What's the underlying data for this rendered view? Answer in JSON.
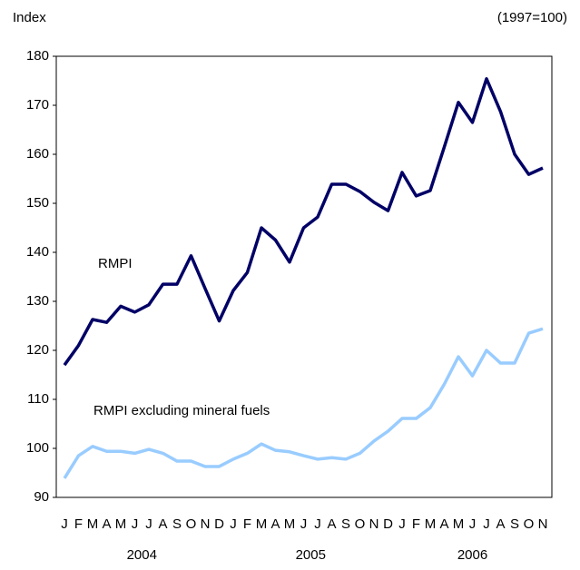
{
  "chart_data": {
    "type": "line",
    "y_axis_label": "Index",
    "y_axis_note": "(1997=100)",
    "categories": [
      "J",
      "F",
      "M",
      "A",
      "M",
      "J",
      "J",
      "A",
      "S",
      "O",
      "N",
      "D",
      "J",
      "F",
      "M",
      "A",
      "M",
      "J",
      "J",
      "A",
      "S",
      "O",
      "N",
      "D",
      "J",
      "F",
      "M",
      "A",
      "M",
      "J",
      "J",
      "A",
      "S",
      "O",
      "N"
    ],
    "years": [
      "2004",
      "2005",
      "2006"
    ],
    "series": [
      {
        "name": "RMPI",
        "color": "#000066",
        "values": [
          117,
          121,
          126.3,
          125.7,
          129,
          127.8,
          129.3,
          133.5,
          133.5,
          139.3,
          132.6,
          126,
          132.2,
          135.9,
          145,
          142.5,
          138,
          145,
          147.2,
          153.9,
          153.9,
          152.4,
          150.2,
          148.5,
          156.3,
          151.5,
          152.6,
          161.5,
          170.6,
          166.5,
          175.4,
          168.7,
          160,
          155.9,
          157.2
        ]
      },
      {
        "name": "RMPI excluding mineral fuels",
        "color": "#99ccff",
        "values": [
          93.9,
          98.5,
          100.4,
          99.4,
          99.4,
          99,
          99.8,
          99,
          97.4,
          97.4,
          96.3,
          96.3,
          97.8,
          99,
          100.9,
          99.6,
          99.3,
          98.5,
          97.8,
          98.1,
          97.8,
          99,
          101.5,
          103.5,
          106.1,
          106.1,
          108.3,
          113.1,
          118.7,
          114.8,
          120,
          117.4,
          117.4,
          123.5,
          124.4
        ]
      }
    ],
    "ylim": [
      90,
      180
    ],
    "yticks": [
      90,
      100,
      110,
      120,
      130,
      140,
      150,
      160,
      170,
      180
    ]
  }
}
